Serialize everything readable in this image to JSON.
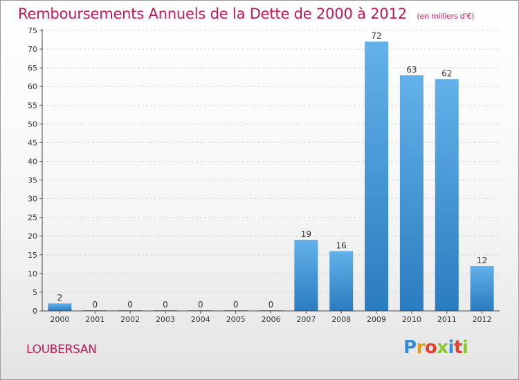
{
  "chart_data": {
    "type": "bar",
    "title": "Remboursements Annuels de la Dette de 2000 à 2012",
    "subtitle": "(en milliers d'€)",
    "categories": [
      "2000",
      "2001",
      "2002",
      "2003",
      "2004",
      "2005",
      "2006",
      "2007",
      "2008",
      "2009",
      "2010",
      "2011",
      "2012"
    ],
    "values": [
      2,
      0,
      0,
      0,
      0,
      0,
      0,
      19,
      16,
      72,
      63,
      62,
      12
    ],
    "data_labels": [
      "2",
      "0",
      "0",
      "0",
      "0",
      "0",
      "0",
      "19",
      "16",
      "72",
      "63",
      "62",
      "12"
    ],
    "ylim": [
      0,
      75
    ],
    "yticks": [
      0,
      5,
      10,
      15,
      20,
      25,
      30,
      35,
      40,
      45,
      50,
      55,
      60,
      65,
      70,
      75
    ],
    "grid": true,
    "legend": "none",
    "bar_color": "#3b93d6"
  },
  "footer": {
    "location": "LOUBERSAN",
    "logo_letters": [
      "P",
      "r",
      "o",
      "x",
      "i",
      "t",
      "i"
    ]
  },
  "colors": {
    "title": "#c0185a",
    "bar_top": "#63b1ea",
    "bar_bottom": "#2a7cc0"
  }
}
